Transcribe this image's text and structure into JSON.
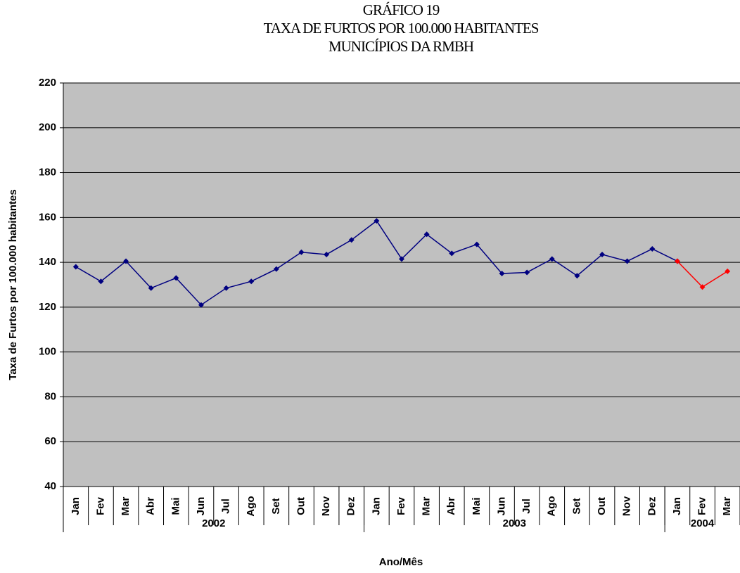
{
  "chart_data": {
    "type": "line",
    "title_lines": [
      "GRÁFICO 19",
      "TAXA DE FURTOS POR 100.000 HABITANTES",
      "MUNICÍPIOS DA RMBH"
    ],
    "y_label": "Taxa de Furtos por 100.000 habitantes",
    "x_label": "Ano/Mês",
    "categories": [
      "Jan",
      "Fev",
      "Mar",
      "Abr",
      "Mai",
      "Jun",
      "Jul",
      "Ago",
      "Set",
      "Out",
      "Nov",
      "Dez",
      "Jan",
      "Fev",
      "Mar",
      "Abr",
      "Mai",
      "Jun",
      "Jul",
      "Ago",
      "Set",
      "Out",
      "Nov",
      "Dez",
      "Jan",
      "Fev",
      "Mar"
    ],
    "year_groups": [
      {
        "label": "2002",
        "count": 12
      },
      {
        "label": "2003",
        "count": 12
      },
      {
        "label": "2004",
        "count": 3
      }
    ],
    "series": [
      {
        "color": "#000080",
        "values": [
          138,
          131.5,
          140.5,
          128.5,
          133,
          121,
          128.5,
          131.5,
          137,
          144.5,
          143.5,
          150,
          158.5,
          141.5,
          152.5,
          144,
          148,
          135,
          135.5,
          141.5,
          134,
          143.5,
          140.5,
          146,
          140.5,
          null,
          null
        ]
      },
      {
        "color": "#ff0000",
        "values": [
          null,
          null,
          null,
          null,
          null,
          null,
          null,
          null,
          null,
          null,
          null,
          null,
          null,
          null,
          null,
          null,
          null,
          null,
          null,
          null,
          null,
          null,
          null,
          null,
          140.5,
          129,
          136
        ]
      }
    ],
    "ylim": [
      40,
      220
    ],
    "yticks": [
      40,
      60,
      80,
      100,
      120,
      140,
      160,
      180,
      200,
      220
    ],
    "grid": true,
    "plot_background": "#c0c0c0"
  }
}
